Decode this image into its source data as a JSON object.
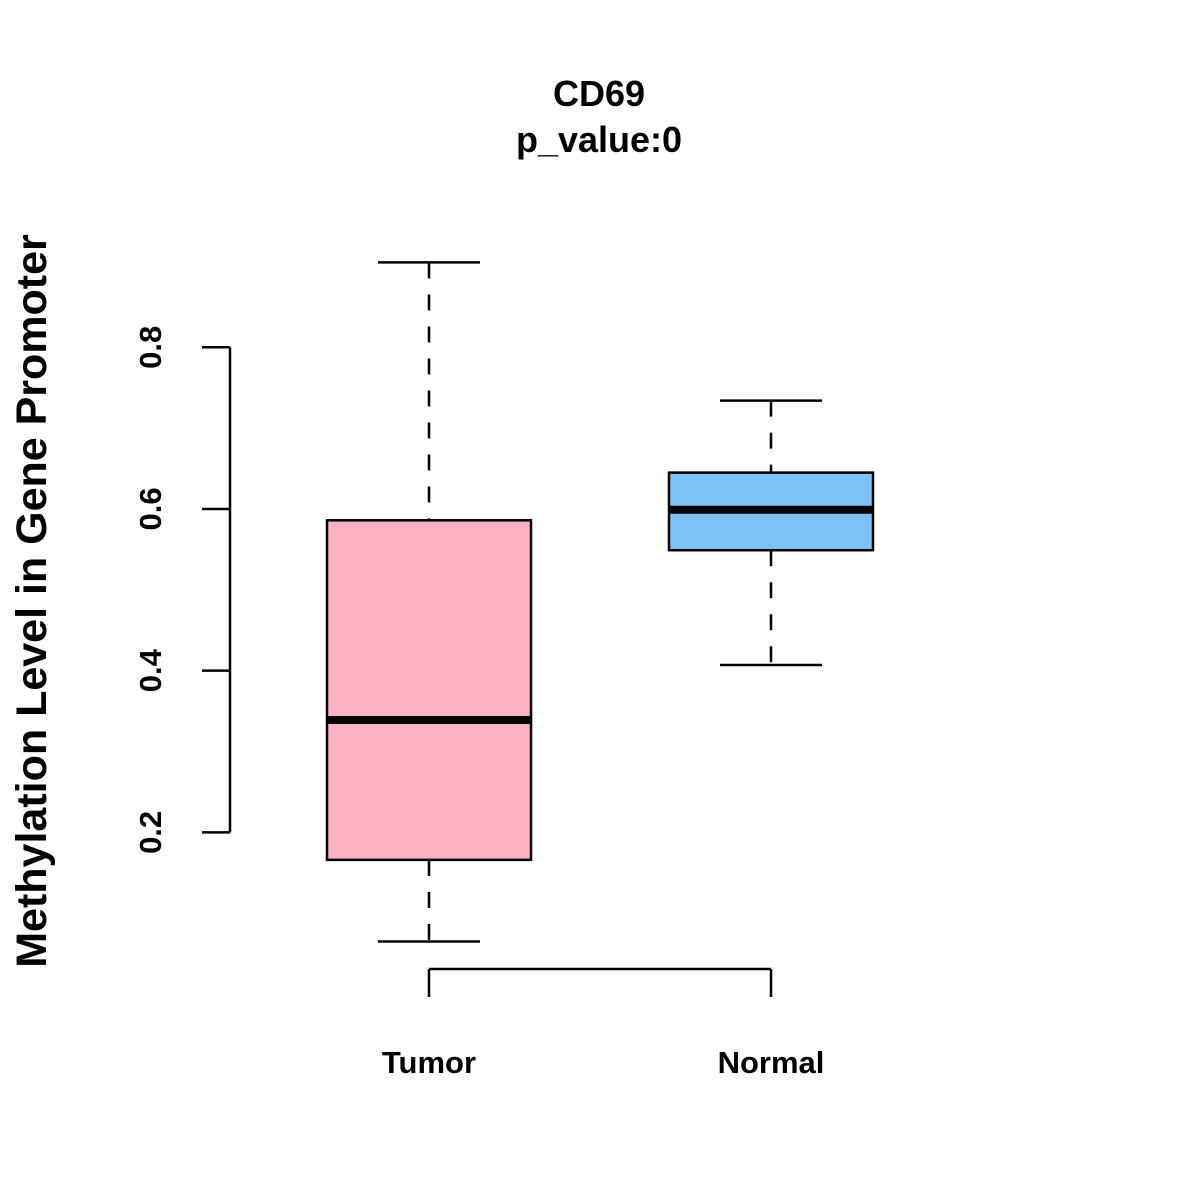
{
  "chart_data": {
    "type": "boxplot",
    "title": "CD69",
    "subtitle": "p_value:0",
    "xlabel": "",
    "ylabel": "Methylation Level in Gene Promoter",
    "ylim": [
      0.01,
      0.95
    ],
    "yticks": [
      0.2,
      0.4,
      0.6,
      0.8
    ],
    "ytick_labels": [
      "0.2",
      "0.4",
      "0.6",
      "0.8"
    ],
    "categories": [
      "Tumor",
      "Normal"
    ],
    "boxes": [
      {
        "name": "Tumor",
        "whisker_low": 0.065,
        "q1": 0.166,
        "median": 0.339,
        "q3": 0.586,
        "whisker_high": 0.905,
        "color": "#FBB1C2"
      },
      {
        "name": "Normal",
        "whisker_low": 0.407,
        "q1": 0.549,
        "median": 0.599,
        "q3": 0.645,
        "whisker_high": 0.734,
        "color": "#7BC2F8"
      }
    ]
  }
}
